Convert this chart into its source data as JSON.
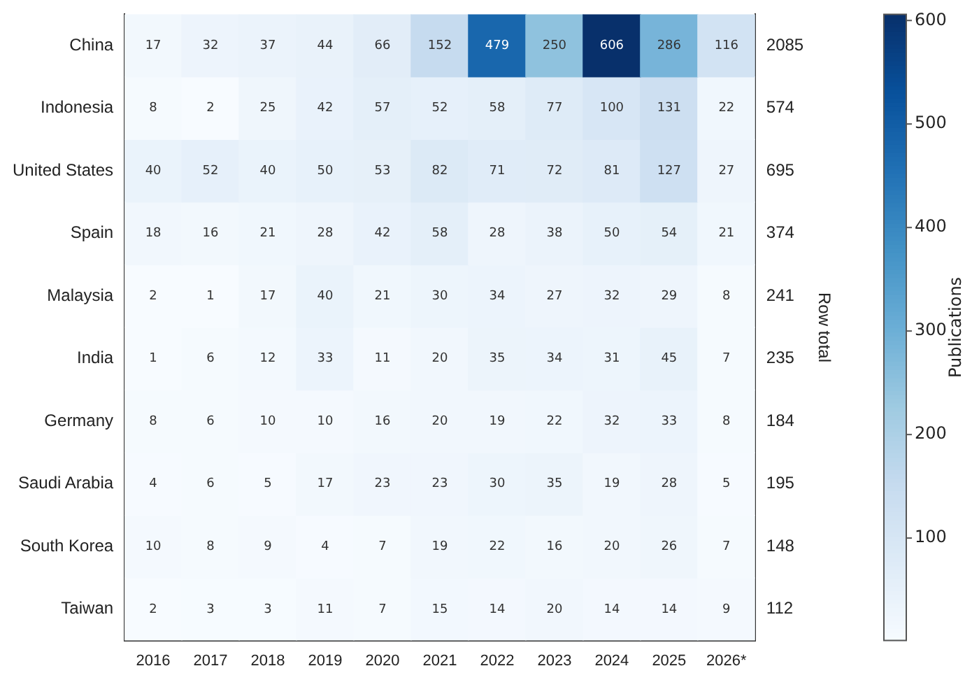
{
  "chart_data": {
    "type": "heatmap",
    "categories": [
      "2016",
      "2017",
      "2018",
      "2019",
      "2020",
      "2021",
      "2022",
      "2023",
      "2024",
      "2025",
      "2026*"
    ],
    "y_categories": [
      "China",
      "Indonesia",
      "United States",
      "Spain",
      "Malaysia",
      "India",
      "Germany",
      "Saudi Arabia",
      "South Korea",
      "Taiwan"
    ],
    "y2_categories": [
      "2085",
      "574",
      "695",
      "374",
      "241",
      "235",
      "184",
      "195",
      "148",
      "112"
    ],
    "cells": [
      [
        17,
        32,
        37,
        44,
        66,
        152,
        479,
        250,
        606,
        286,
        116
      ],
      [
        8,
        2,
        25,
        42,
        57,
        52,
        58,
        77,
        100,
        131,
        22
      ],
      [
        40,
        52,
        40,
        50,
        53,
        82,
        71,
        72,
        81,
        127,
        27
      ],
      [
        18,
        16,
        21,
        28,
        42,
        58,
        28,
        38,
        50,
        54,
        21
      ],
      [
        2,
        1,
        17,
        40,
        21,
        30,
        34,
        27,
        32,
        29,
        8
      ],
      [
        1,
        6,
        12,
        33,
        11,
        20,
        35,
        34,
        31,
        45,
        7
      ],
      [
        8,
        6,
        10,
        10,
        16,
        20,
        19,
        22,
        32,
        33,
        8
      ],
      [
        4,
        6,
        5,
        17,
        23,
        23,
        30,
        35,
        19,
        28,
        5
      ],
      [
        10,
        8,
        9,
        4,
        7,
        19,
        22,
        16,
        20,
        26,
        7
      ],
      [
        2,
        3,
        3,
        11,
        7,
        15,
        14,
        20,
        14,
        14,
        9
      ]
    ],
    "data_labels": true,
    "y2label": "Row total",
    "clabel": "Publications",
    "clim": [
      1,
      606
    ],
    "cticks": [
      100,
      200,
      300,
      400,
      500,
      600
    ]
  }
}
